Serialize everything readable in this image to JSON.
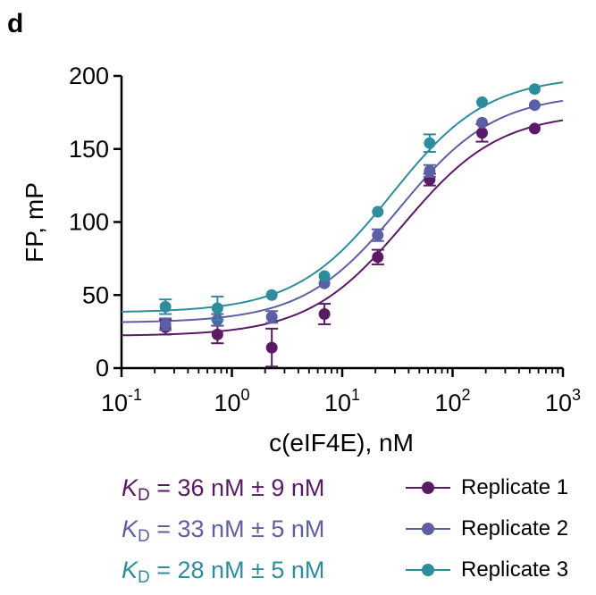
{
  "panel_label": "d",
  "colors": {
    "rep1": "#5b1a66",
    "rep2": "#5d5fa5",
    "rep3": "#2e8d9d",
    "axis": "#000000"
  },
  "kd_lines": [
    {
      "symbol": "K",
      "subscript": "D",
      "text": " = 36 nM ± 9 nM"
    },
    {
      "symbol": "K",
      "subscript": "D",
      "text": " = 33 nM ± 5 nM"
    },
    {
      "symbol": "K",
      "subscript": "D",
      "text": " = 28 nM ± 5 nM"
    }
  ],
  "chart_data": {
    "type": "scatter",
    "title": "",
    "xlabel": "c(eIF4E), nM",
    "ylabel": "FP, mP",
    "xscale": "log",
    "xlim": [
      0.1,
      1000
    ],
    "ylim": [
      0,
      200
    ],
    "x_ticks": [
      {
        "base": "10",
        "exp": "-1"
      },
      {
        "base": "10",
        "exp": "0"
      },
      {
        "base": "10",
        "exp": "1"
      },
      {
        "base": "10",
        "exp": "2"
      },
      {
        "base": "10",
        "exp": "3"
      }
    ],
    "y_ticks": [
      "0",
      "50",
      "100",
      "150",
      "200"
    ],
    "x": [
      0.25,
      0.74,
      2.3,
      6.9,
      21,
      62,
      185,
      555
    ],
    "legend_position": "bottom-right",
    "series": [
      {
        "name": "Replicate 1",
        "y": [
          28,
          23,
          14,
          37,
          76,
          129,
          161,
          164
        ],
        "err": [
          5,
          6,
          13,
          7,
          5,
          4,
          6,
          0
        ],
        "fit": {
          "bottom": 22,
          "top": 175,
          "kd": 36
        }
      },
      {
        "name": "Replicate 2",
        "y": [
          30,
          33,
          35,
          58,
          91,
          135,
          168,
          180
        ],
        "err": [
          4,
          4,
          4,
          0,
          4,
          4,
          0,
          0
        ],
        "fit": {
          "bottom": 31,
          "top": 188,
          "kd": 33
        }
      },
      {
        "name": "Replicate 3",
        "y": [
          42,
          41,
          50,
          63,
          107,
          154,
          182,
          191
        ],
        "err": [
          5,
          8,
          0,
          0,
          0,
          6,
          0,
          0
        ],
        "fit": {
          "bottom": 38,
          "top": 200,
          "kd": 28
        }
      }
    ]
  }
}
